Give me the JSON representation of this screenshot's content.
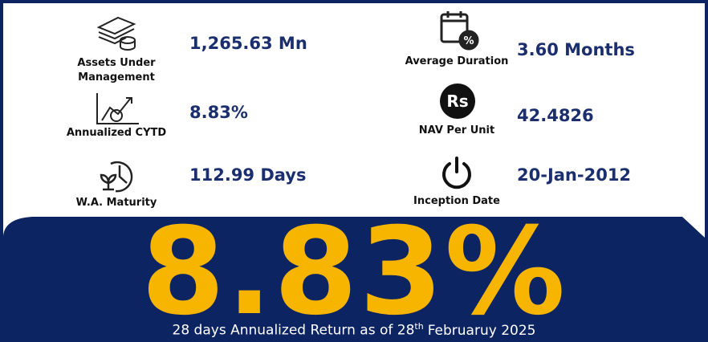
{
  "metrics": [
    {
      "label": "Assets Under Management",
      "value": "1,265.63 Mn"
    },
    {
      "label": "Average Duration",
      "value": "3.60 Months"
    },
    {
      "label": "Annualized CYTD",
      "value": "8.83%"
    },
    {
      "label": "NAV Per Unit",
      "value": "42.4826"
    },
    {
      "label": "W.A. Maturity",
      "value": "112.99 Days"
    },
    {
      "label": "Inception Date",
      "value": "20-Jan-2012"
    }
  ],
  "highlight": {
    "value": "8.83%",
    "caption_before": "28 days Annualized Return as of 28",
    "caption_superscript": "th",
    "caption_after": "Februaruy 2025"
  }
}
